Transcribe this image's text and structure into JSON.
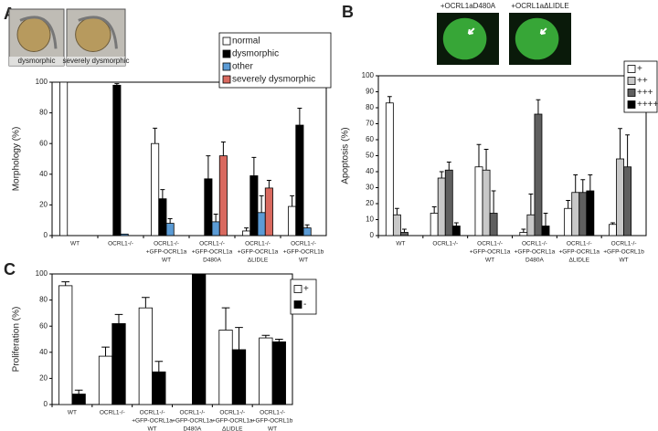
{
  "chart_data": [
    {
      "type": "bar",
      "panel": "A",
      "y_label": "Morphology (%)",
      "images": [
        "dysmorphic",
        "severely dysmorphic"
      ],
      "categories": [
        [
          "WT"
        ],
        [
          "OCRL1-/-"
        ],
        [
          "OCRL1-/-",
          "+GFP-OCRL1a",
          "WT"
        ],
        [
          "OCRL1-/-",
          "+GFP-OCRL1a",
          "D480A"
        ],
        [
          "OCRL1-/-",
          "+GFP-OCRL1a",
          "ΔLIDLE"
        ],
        [
          "OCRL1-/-",
          "+GFP-OCRL1b",
          "WT"
        ]
      ],
      "series": [
        {
          "name": "normal",
          "color": "#ffffff",
          "values": [
            100,
            0,
            60,
            0,
            3,
            19
          ],
          "errors": [
            null,
            null,
            10,
            null,
            2,
            7
          ]
        },
        {
          "name": "dysmorphic",
          "color": "#000000",
          "values": [
            0,
            98,
            24,
            37,
            39,
            72
          ],
          "errors": [
            null,
            1,
            6,
            15,
            12,
            11
          ]
        },
        {
          "name": "other",
          "color": "#5b9bd5",
          "values": [
            0,
            1,
            8,
            9,
            15,
            5
          ],
          "errors": [
            null,
            null,
            3,
            5,
            11,
            2
          ]
        },
        {
          "name": "severely dysmorphic",
          "color": "#d9695f",
          "values": [
            0,
            0,
            0,
            52,
            31,
            0
          ],
          "errors": [
            null,
            null,
            null,
            9,
            5,
            null
          ]
        }
      ],
      "ylim": [
        0,
        100
      ],
      "yticks": [
        0,
        20,
        40,
        60,
        80,
        100
      ]
    },
    {
      "type": "bar",
      "panel": "B",
      "y_label": "Apoptosis (%)",
      "images": [
        "+OCRL1aD480A",
        "+OCRL1aΔLIDLE"
      ],
      "categories": [
        [
          "WT"
        ],
        [
          "OCRL1-/-"
        ],
        [
          "OCRL1-/-",
          "+GFP-OCRL1a",
          "WT"
        ],
        [
          "OCRL1-/-",
          "+GFP-OCRL1a",
          "D480A"
        ],
        [
          "OCRL1-/-",
          "+GFP-OCRL1a",
          "ΔLIDLE"
        ],
        [
          "OCRL1-/-",
          "+GFP-OCRL1b",
          "WT"
        ]
      ],
      "series": [
        {
          "name": "+",
          "color": "#ffffff",
          "values": [
            83,
            14,
            43,
            2,
            17,
            7
          ],
          "errors": [
            4,
            4,
            14,
            2,
            5,
            1
          ]
        },
        {
          "name": "++",
          "color": "#c8c8c8",
          "values": [
            13,
            36,
            41,
            13,
            27,
            48
          ],
          "errors": [
            4,
            4,
            13,
            13,
            11,
            19
          ]
        },
        {
          "name": "+++",
          "color": "#5f5f5f",
          "values": [
            2,
            41,
            14,
            76,
            27,
            43
          ],
          "errors": [
            2,
            5,
            14,
            9,
            8,
            20
          ]
        },
        {
          "name": "++++",
          "color": "#000000",
          "values": [
            0,
            6,
            0,
            6,
            28,
            0
          ],
          "errors": [
            null,
            2,
            null,
            8,
            10,
            null
          ]
        }
      ],
      "ylim": [
        0,
        100
      ],
      "yticks": [
        0,
        10,
        20,
        30,
        40,
        50,
        60,
        70,
        80,
        90,
        100
      ]
    },
    {
      "type": "bar",
      "panel": "C",
      "y_label": "Proliferation (%)",
      "categories": [
        [
          "WT"
        ],
        [
          "OCRL1-/-"
        ],
        [
          "OCRL1-/-",
          "+GFP-OCRL1a",
          "WT"
        ],
        [
          "OCRL1-/-",
          "+GFP-OCRL1a",
          "D480A"
        ],
        [
          "OCRL1-/-",
          "+GFP-OCRL1a",
          "ΔLIDLE"
        ],
        [
          "OCRL1-/-",
          "+GFP-OCRL1b",
          "WT"
        ]
      ],
      "series": [
        {
          "name": "+",
          "color": "#ffffff",
          "values": [
            91,
            37,
            74,
            0,
            57,
            51
          ],
          "errors": [
            3,
            7,
            8,
            null,
            17,
            2
          ]
        },
        {
          "name": "-",
          "color": "#000000",
          "values": [
            8,
            62,
            25,
            100,
            42,
            48
          ],
          "errors": [
            3,
            7,
            8,
            null,
            17,
            2
          ]
        }
      ],
      "ylim": [
        0,
        100
      ],
      "yticks": [
        0,
        20,
        40,
        60,
        80,
        100
      ]
    }
  ]
}
